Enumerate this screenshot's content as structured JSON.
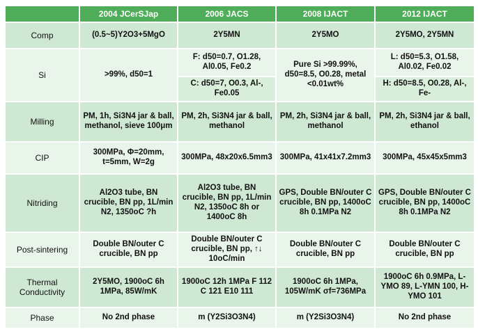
{
  "columns": [
    "",
    "2004 JCerSJap",
    "2006 JACS",
    "2008 IJACT",
    "2012 IJACT"
  ],
  "rows": {
    "comp": {
      "label": "Comp",
      "c1": "(0.5~5)Y2O3+5MgO",
      "c2": "2Y5MN",
      "c3": "2Y5MO",
      "c4": "2Y5MO, 2Y5MN"
    },
    "si": {
      "label": "Si",
      "c1": ">99%, d50=1",
      "c2a": "F: d50=0.7, O1.28, Al0.05, Fe0.2",
      "c2b": "C: d50=7, O0.3, Al-, Fe0.05",
      "c3": "Pure Si >99.99%, d50=8.5, O0.28, metal <0.01wt%",
      "c4a": "L: d50=5.3, O1.58, Al0.02, Fe0.02",
      "c4b": "H: d50=8.5, O0.28, Al-, Fe-"
    },
    "milling": {
      "label": "Milling",
      "c1": "PM, 1h, Si3N4 jar & ball, methanol, sieve 100μm",
      "c2": "PM, 2h, Si3N4 jar & ball, methanol",
      "c3": "PM, 2h, Si3N4 jar & ball, methanol",
      "c4": "PM, 2h, Si3N4 jar & ball, ethanol"
    },
    "cip": {
      "label": "CIP",
      "c1": "300MPa, Φ=20mm, t=5mm, W=2g",
      "c2": "300MPa, 48x20x6.5mm3",
      "c3": "300MPa, 41x41x7.2mm3",
      "c4": "300MPa, 45x45x5mm3"
    },
    "nitriding": {
      "label": "Nitriding",
      "c1": "Al2O3 tube, BN crucible, BN pp, 1L/min N2, 1350oC ?h",
      "c2": "Al2O3 tube, BN crucible, BN pp, 1L/min N2, 1350oC 8h or 1400oC 8h",
      "c3": "GPS, Double BN/outer C crucible, BN pp, 1400oC 8h 0.1MPa N2",
      "c4": "GPS, Double BN/outer C crucible, BN pp, 1400oC 8h 0.1MPa N2"
    },
    "postsint": {
      "label": "Post-sintering",
      "c1": "Double BN/outer C crucible, BN pp",
      "c2": "Double BN/outer C crucible, BN pp, ↑↓ 10oC/min",
      "c3": "Double BN/outer C crucible, BN pp",
      "c4": "Double BN/outer C crucible, BN pp"
    },
    "thermal": {
      "label": "Thermal Conductivity",
      "c1": "2Y5MO, 1900oC 6h 1MPa, 85W/mK",
      "c2": "1900oC 12h 1MPa F 112 C 121 E10 111",
      "c3": "1900oC 6h 1MPa, 105W/mK σf=736MPa",
      "c4": "1900oC 6h 0.9MPa, L-YMO 89, L-YMN 100, H-YMO 101"
    },
    "phase": {
      "label": "Phase",
      "c1": "No 2nd phase",
      "c2": "m (Y2Si3O3N4)",
      "c3": "m (Y2Si3O3N4)",
      "c4": "No 2nd phase"
    }
  }
}
